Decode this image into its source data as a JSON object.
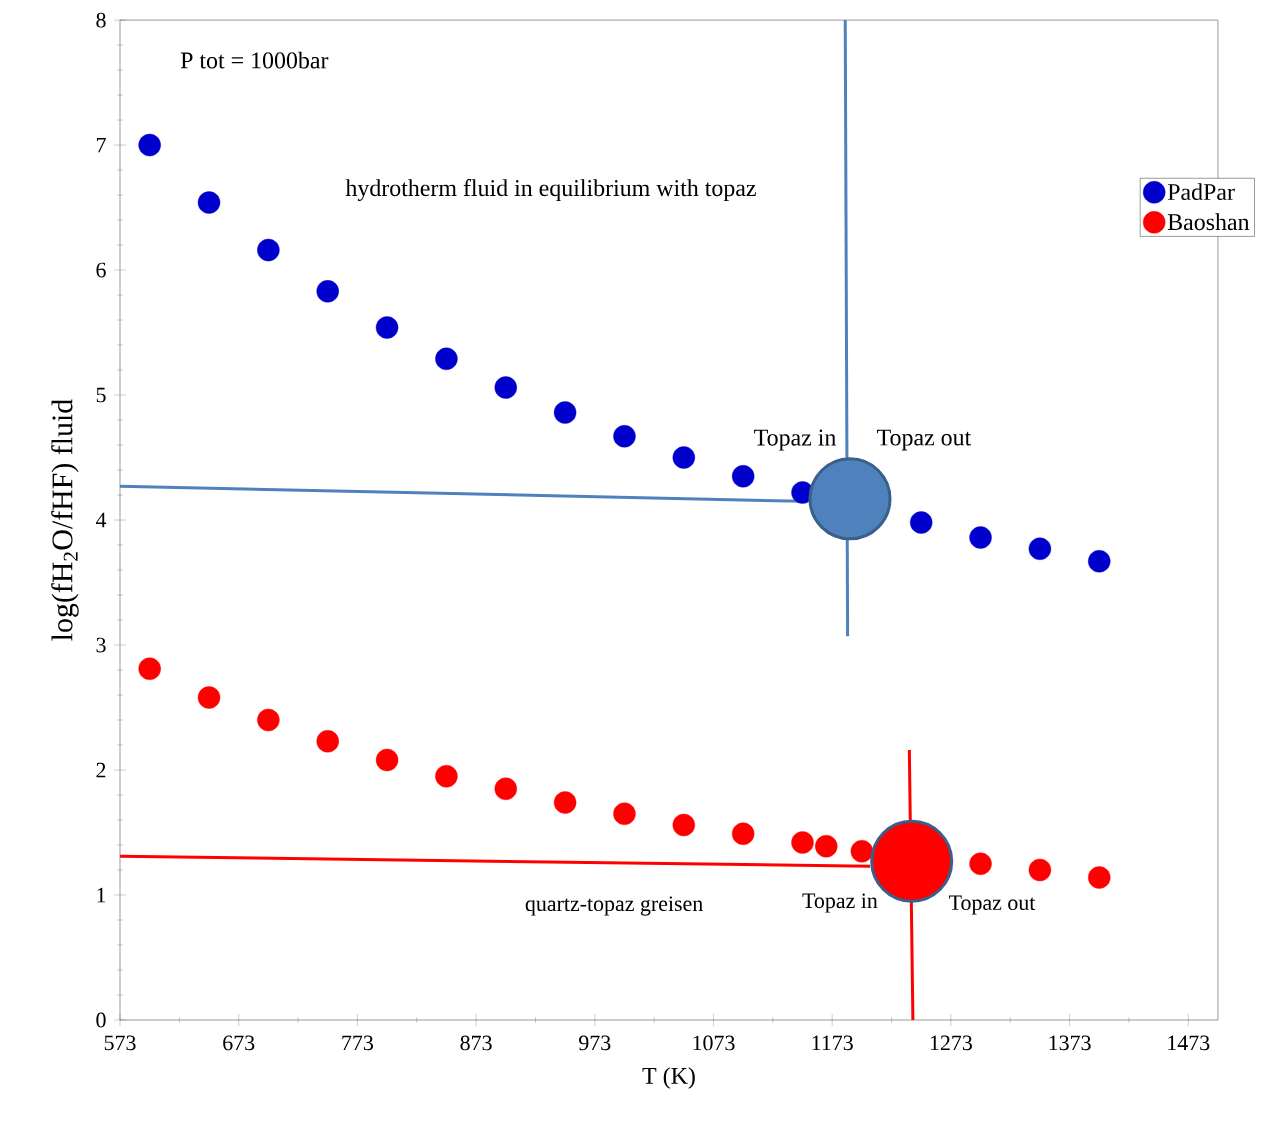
{
  "chart_data": {
    "type": "scatter",
    "xlabel": "T   (K)",
    "ylabel": "log(fH$_{2}$O/fHF) fluid",
    "xlim": [
      573,
      1498
    ],
    "xticks": [
      573,
      673,
      773,
      873,
      973,
      1073,
      1173,
      1273,
      1373,
      1473
    ],
    "ylim": [
      0,
      8
    ],
    "yticks": [
      0,
      1,
      2,
      3,
      4,
      5,
      6,
      7,
      8
    ],
    "legend": "right",
    "series": [
      {
        "name": "PadPar",
        "color": "#0000cc",
        "x": [
          598,
          648,
          698,
          748,
          798,
          848,
          898,
          948,
          998,
          1048,
          1098,
          1148,
          1248,
          1298,
          1348,
          1398
        ],
        "values": [
          7.0,
          6.54,
          6.16,
          5.83,
          5.54,
          5.29,
          5.06,
          4.86,
          4.67,
          4.5,
          4.35,
          4.22,
          3.98,
          3.86,
          3.77,
          3.67
        ]
      },
      {
        "name": "Baoshan",
        "color": "#ff0000",
        "x": [
          598,
          648,
          698,
          748,
          798,
          848,
          898,
          948,
          998,
          1048,
          1098,
          1148,
          1168,
          1198,
          1298,
          1348,
          1398
        ],
        "values": [
          2.81,
          2.58,
          2.4,
          2.23,
          2.08,
          1.95,
          1.85,
          1.74,
          1.65,
          1.56,
          1.49,
          1.42,
          1.39,
          1.35,
          1.25,
          1.2,
          1.14
        ]
      },
      {
        "type": "line",
        "color": "#4f81bd",
        "x": [
          573,
          1148
        ],
        "values": [
          4.27,
          4.15
        ]
      },
      {
        "type": "line",
        "color": "#4f81bd",
        "x": [
          1184,
          1186
        ],
        "values": [
          8,
          3.07
        ]
      },
      {
        "type": "line",
        "color": "#ff0000",
        "x": [
          573,
          1205
        ],
        "values": [
          1.31,
          1.23
        ]
      },
      {
        "type": "line",
        "color": "#ff0000",
        "x": [
          1238,
          1241
        ],
        "values": [
          2.16,
          0
        ]
      },
      {
        "type": "bubble",
        "color": "#4f81bd",
        "x": [
          1188
        ],
        "values": [
          4.17
        ],
        "sizes": [
          1
        ]
      },
      {
        "type": "bubble",
        "color": "#ff0000",
        "x": [
          1240
        ],
        "values": [
          1.27
        ],
        "sizes": [
          1
        ]
      }
    ],
    "annotations": [
      "P tot = 1000bar",
      "hydrotherm fluid in equilibrium with topaz",
      "Topaz in",
      "Topaz out",
      "quartz-topaz greisen",
      "Topaz in",
      "Topaz out"
    ]
  }
}
